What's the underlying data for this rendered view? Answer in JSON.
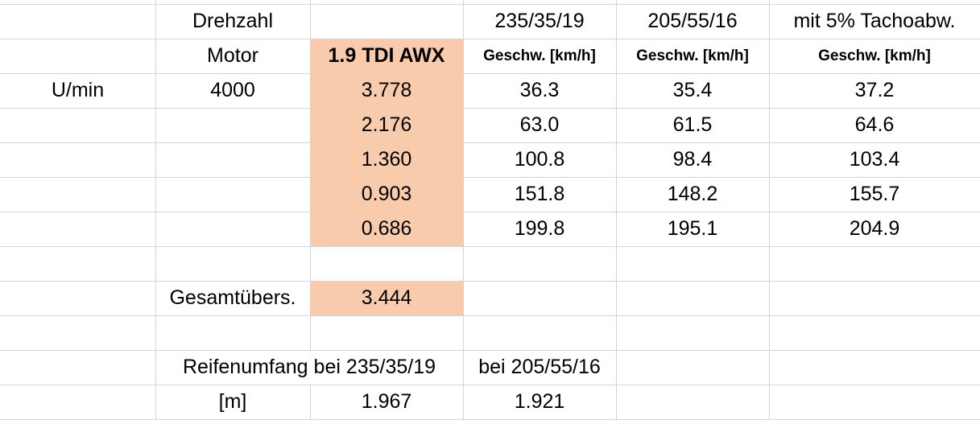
{
  "header": {
    "drehzahl": "Drehzahl",
    "tyre_235": "235/35/19",
    "tyre_205": "205/55/16",
    "tacho": "mit 5% Tachoabw.",
    "motor": "Motor",
    "engine": "1.9 TDI AWX",
    "speed_235": "Geschw. [km/h]",
    "speed_205": "Geschw. [km/h]",
    "speed_tacho": "Geschw. [km/h]"
  },
  "unit": "U/min",
  "rpm": "4000",
  "gears": [
    {
      "ratio": "3.778",
      "speed_235": "36.3",
      "speed_205": "35.4",
      "speed_tacho": "37.2"
    },
    {
      "ratio": "2.176",
      "speed_235": "63.0",
      "speed_205": "61.5",
      "speed_tacho": "64.6"
    },
    {
      "ratio": "1.360",
      "speed_235": "100.8",
      "speed_205": "98.4",
      "speed_tacho": "103.4"
    },
    {
      "ratio": "0.903",
      "speed_235": "151.8",
      "speed_205": "148.2",
      "speed_tacho": "155.7"
    },
    {
      "ratio": "0.686",
      "speed_235": "199.8",
      "speed_205": "195.1",
      "speed_tacho": "204.9"
    }
  ],
  "final_drive": {
    "label": "Gesamtübers.",
    "value": "3.444"
  },
  "circumference": {
    "label": "Reifenumfang bei 235/35/19",
    "label_205": "bei 205/55/16",
    "unit": "[m]",
    "value_235": "1.967",
    "value_205": "1.921"
  }
}
